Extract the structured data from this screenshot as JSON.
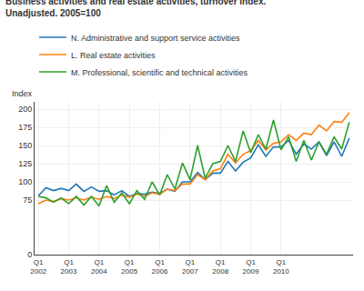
{
  "chart_data": {
    "type": "line",
    "title": "Business activities and real estate activities, turnover index.",
    "subtitle": "Unadjusted. 2005=100",
    "ylabel": "Index",
    "categories": [
      "Q1\n2002",
      null,
      null,
      null,
      "Q1\n2003",
      null,
      null,
      null,
      "Q1\n2004",
      null,
      null,
      null,
      "Q1\n2005",
      null,
      null,
      null,
      "Q1\n2006",
      null,
      null,
      null,
      "Q1\n2007",
      null,
      null,
      null,
      "Q1\n2008",
      null,
      null,
      null,
      "Q1\n2009",
      null,
      null,
      null,
      "Q1\n2010",
      null,
      null,
      null,
      null,
      null,
      null,
      null,
      null,
      null
    ],
    "series": [
      {
        "name": "N. Administrative and support service activities",
        "values": [
          81,
          92,
          88,
          91,
          88,
          97,
          87,
          93,
          87,
          88,
          82,
          88,
          80,
          84,
          83,
          86,
          84,
          90,
          87,
          100,
          100,
          113,
          103,
          112,
          112,
          128,
          115,
          127,
          133,
          151,
          135,
          148,
          148,
          157,
          138,
          152,
          145,
          155,
          136,
          155,
          135,
          160
        ]
      },
      {
        "name": "L. Real estate activities",
        "values": [
          70,
          75,
          73,
          77,
          75,
          78,
          75,
          79,
          76,
          80,
          77,
          82,
          79,
          83,
          80,
          85,
          83,
          90,
          88,
          97,
          97,
          110,
          103,
          115,
          118,
          138,
          126,
          138,
          143,
          157,
          144,
          153,
          155,
          165,
          157,
          167,
          165,
          178,
          170,
          183,
          182,
          195
        ]
      },
      {
        "name": "M. Professional, scientific and technical activities",
        "values": [
          80,
          78,
          72,
          78,
          70,
          80,
          68,
          80,
          67,
          95,
          72,
          85,
          70,
          88,
          76,
          100,
          82,
          110,
          90,
          126,
          103,
          150,
          105,
          125,
          128,
          150,
          128,
          170,
          140,
          165,
          145,
          185,
          144,
          162,
          128,
          157,
          130,
          155,
          138,
          162,
          145,
          182
        ]
      }
    ],
    "ylim": [
      0,
      210
    ],
    "yticks": [
      0,
      75,
      100,
      125,
      150,
      175,
      200
    ],
    "grid": true,
    "legend": "upper left"
  }
}
